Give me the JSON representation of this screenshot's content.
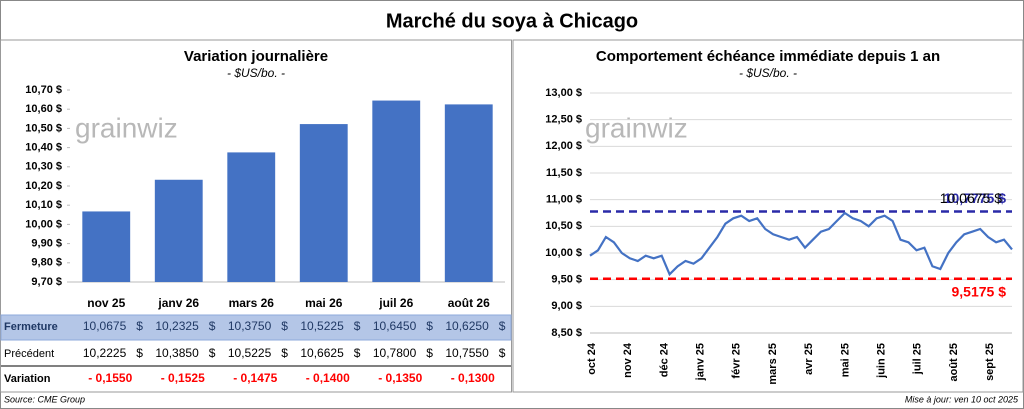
{
  "title": "Marché du soya à Chicago",
  "chart_data": [
    {
      "type": "bar",
      "title": "Variation journalière",
      "subtitle": "- $US/bo. -",
      "watermark": "grainwiz",
      "categories": [
        "nov 25",
        "janv 26",
        "mars 26",
        "mai 26",
        "juil 26",
        "août 26"
      ],
      "values": [
        10.0675,
        10.2325,
        10.375,
        10.5225,
        10.645,
        10.625
      ],
      "color": "#4472c4",
      "ylim": [
        9.7,
        10.7
      ],
      "yticks": [
        {
          "value": 9.7,
          "label": "9,70 $"
        },
        {
          "value": 9.8,
          "label": "9,80 $"
        },
        {
          "value": 9.9,
          "label": "9,90 $"
        },
        {
          "value": 10.0,
          "label": "10,00 $"
        },
        {
          "value": 10.1,
          "label": "10,10 $"
        },
        {
          "value": 10.2,
          "label": "10,20 $"
        },
        {
          "value": 10.3,
          "label": "10,30 $"
        },
        {
          "value": 10.4,
          "label": "10,40 $"
        },
        {
          "value": 10.5,
          "label": "10,50 $"
        },
        {
          "value": 10.6,
          "label": "10,60 $"
        },
        {
          "value": 10.7,
          "label": "10,70 $"
        }
      ],
      "grid": false
    },
    {
      "type": "line",
      "title": "Comportement échéance immédiate depuis 1 an",
      "subtitle": "- $US/bo. -",
      "watermark": "grainwiz",
      "x_labels": [
        "oct 24",
        "nov 24",
        "déc 24",
        "janv 25",
        "févr 25",
        "mars 25",
        "avr 25",
        "mai 25",
        "juin 25",
        "juil 25",
        "août 25",
        "sept 25"
      ],
      "series": [
        {
          "color": "#4472c4",
          "values": [
            9.95,
            10.05,
            10.3,
            10.2,
            10.0,
            9.9,
            9.85,
            9.95,
            9.9,
            9.95,
            9.6,
            9.75,
            9.85,
            9.8,
            9.9,
            10.1,
            10.3,
            10.55,
            10.65,
            10.7,
            10.6,
            10.65,
            10.45,
            10.35,
            10.3,
            10.25,
            10.3,
            10.1,
            10.25,
            10.4,
            10.45,
            10.6,
            10.75,
            10.65,
            10.6,
            10.5,
            10.65,
            10.7,
            10.6,
            10.25,
            10.2,
            10.05,
            10.1,
            9.75,
            9.7,
            10.0,
            10.2,
            10.35,
            10.4,
            10.45,
            10.3,
            10.2,
            10.25,
            10.0675
          ],
          "value_labels": [
            null,
            null,
            null,
            null,
            null,
            null,
            null,
            null,
            null,
            null,
            null,
            null,
            null,
            null,
            null,
            null,
            null,
            null,
            null,
            null,
            null,
            null,
            null,
            null,
            null,
            null,
            null,
            null,
            null,
            null,
            null,
            null,
            null,
            null,
            null,
            null,
            null,
            null,
            null,
            null,
            null,
            null,
            null,
            null,
            null,
            null,
            null,
            null,
            null,
            null,
            null,
            null,
            null,
            "10,0675 $"
          ]
        }
      ],
      "reference_lines": [
        {
          "value": 10.7775,
          "label": "10,7775 $",
          "color": "#2a2aa8"
        },
        {
          "value": 9.5175,
          "label": "9,5175 $",
          "color": "#ff0000"
        }
      ],
      "ylim": [
        8.5,
        13.0
      ],
      "yticks": [
        {
          "value": 8.5,
          "label": "8,50 $"
        },
        {
          "value": 9.0,
          "label": "9,00 $"
        },
        {
          "value": 9.5,
          "label": "9,50 $"
        },
        {
          "value": 10.0,
          "label": "10,00 $"
        },
        {
          "value": 10.5,
          "label": "10,50 $"
        },
        {
          "value": 11.0,
          "label": "11,00 $"
        },
        {
          "value": 11.5,
          "label": "11,50 $"
        },
        {
          "value": 12.0,
          "label": "12,00 $"
        },
        {
          "value": 12.5,
          "label": "12,50 $"
        },
        {
          "value": 13.0,
          "label": "13,00 $"
        }
      ],
      "grid": true
    }
  ],
  "table": {
    "rows": [
      {
        "label": "Fermeture",
        "cells": [
          "10,0675",
          "10,2325",
          "10,3750",
          "10,5225",
          "10,6450",
          "10,6250"
        ],
        "unit": "$"
      },
      {
        "label": "Précédent",
        "cells": [
          "10,2225",
          "10,3850",
          "10,5225",
          "10,6625",
          "10,7800",
          "10,7550"
        ],
        "unit": "$"
      },
      {
        "label": "Variation",
        "cells": [
          "- 0,1550",
          "- 0,1525",
          "- 0,1475",
          "- 0,1400",
          "- 0,1350",
          "- 0,1300"
        ]
      }
    ]
  },
  "footer": {
    "source": "Source: CME Group",
    "updated": "Mise à jour: ven 10 oct 2025"
  }
}
